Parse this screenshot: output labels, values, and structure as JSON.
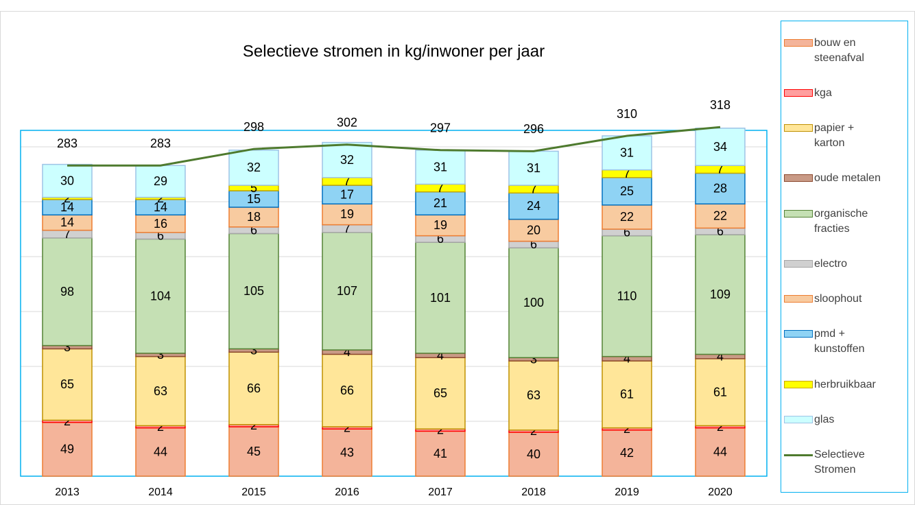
{
  "chart_data": {
    "type": "bar",
    "stacked": true,
    "title": "Selectieve stromen in kg/inwoner per jaar",
    "categories": [
      "2013",
      "2014",
      "2015",
      "2016",
      "2017",
      "2018",
      "2019",
      "2020"
    ],
    "series": [
      {
        "name": "bouw en steenafval",
        "color": "#f4b49a",
        "border": "#ed7d31",
        "values": [
          49,
          44,
          45,
          43,
          41,
          40,
          42,
          44
        ]
      },
      {
        "name": "kga",
        "color": "#ff9f9f",
        "border": "#ff0000",
        "values": [
          2,
          2,
          2,
          2,
          2,
          2,
          2,
          2
        ]
      },
      {
        "name": "papier + karton",
        "color": "#ffe699",
        "border": "#bf9000",
        "values": [
          65,
          63,
          66,
          66,
          65,
          63,
          61,
          61
        ]
      },
      {
        "name": "oude metalen",
        "color": "#c99a86",
        "border": "#8c4a2f",
        "values": [
          3,
          3,
          3,
          4,
          4,
          3,
          4,
          4
        ]
      },
      {
        "name": "organische fracties",
        "color": "#c5e0b4",
        "border": "#548235",
        "values": [
          98,
          104,
          105,
          107,
          101,
          100,
          110,
          109
        ]
      },
      {
        "name": "electro",
        "color": "#d0d0d0",
        "border": "#a5a5a5",
        "values": [
          7,
          6,
          6,
          7,
          6,
          6,
          6,
          6
        ]
      },
      {
        "name": "sloophout",
        "color": "#f8cba0",
        "border": "#ed7d31",
        "values": [
          14,
          16,
          18,
          19,
          19,
          20,
          22,
          22
        ]
      },
      {
        "name": "pmd + kunstoffen",
        "color": "#8fd3f4",
        "border": "#0070c0",
        "values": [
          14,
          14,
          15,
          17,
          21,
          24,
          25,
          28
        ]
      },
      {
        "name": "herbruikbaar",
        "color": "#ffff00",
        "border": "#c9a800",
        "values": [
          2,
          2,
          5,
          7,
          7,
          7,
          7,
          7
        ]
      },
      {
        "name": "glas",
        "color": "#ccffff",
        "border": "#9dc3e6",
        "values": [
          30,
          29,
          32,
          32,
          31,
          31,
          31,
          34
        ]
      },
      {
        "name": "Selectieve Stromen",
        "type": "line",
        "color": "#4e7a2e",
        "values": [
          283,
          283,
          298,
          302,
          297,
          296,
          310,
          318
        ]
      }
    ],
    "ylim": [
      0,
      350
    ],
    "yticks": [
      0,
      50,
      100,
      150,
      200,
      250,
      300,
      350
    ],
    "grid": true,
    "legend": "right"
  }
}
